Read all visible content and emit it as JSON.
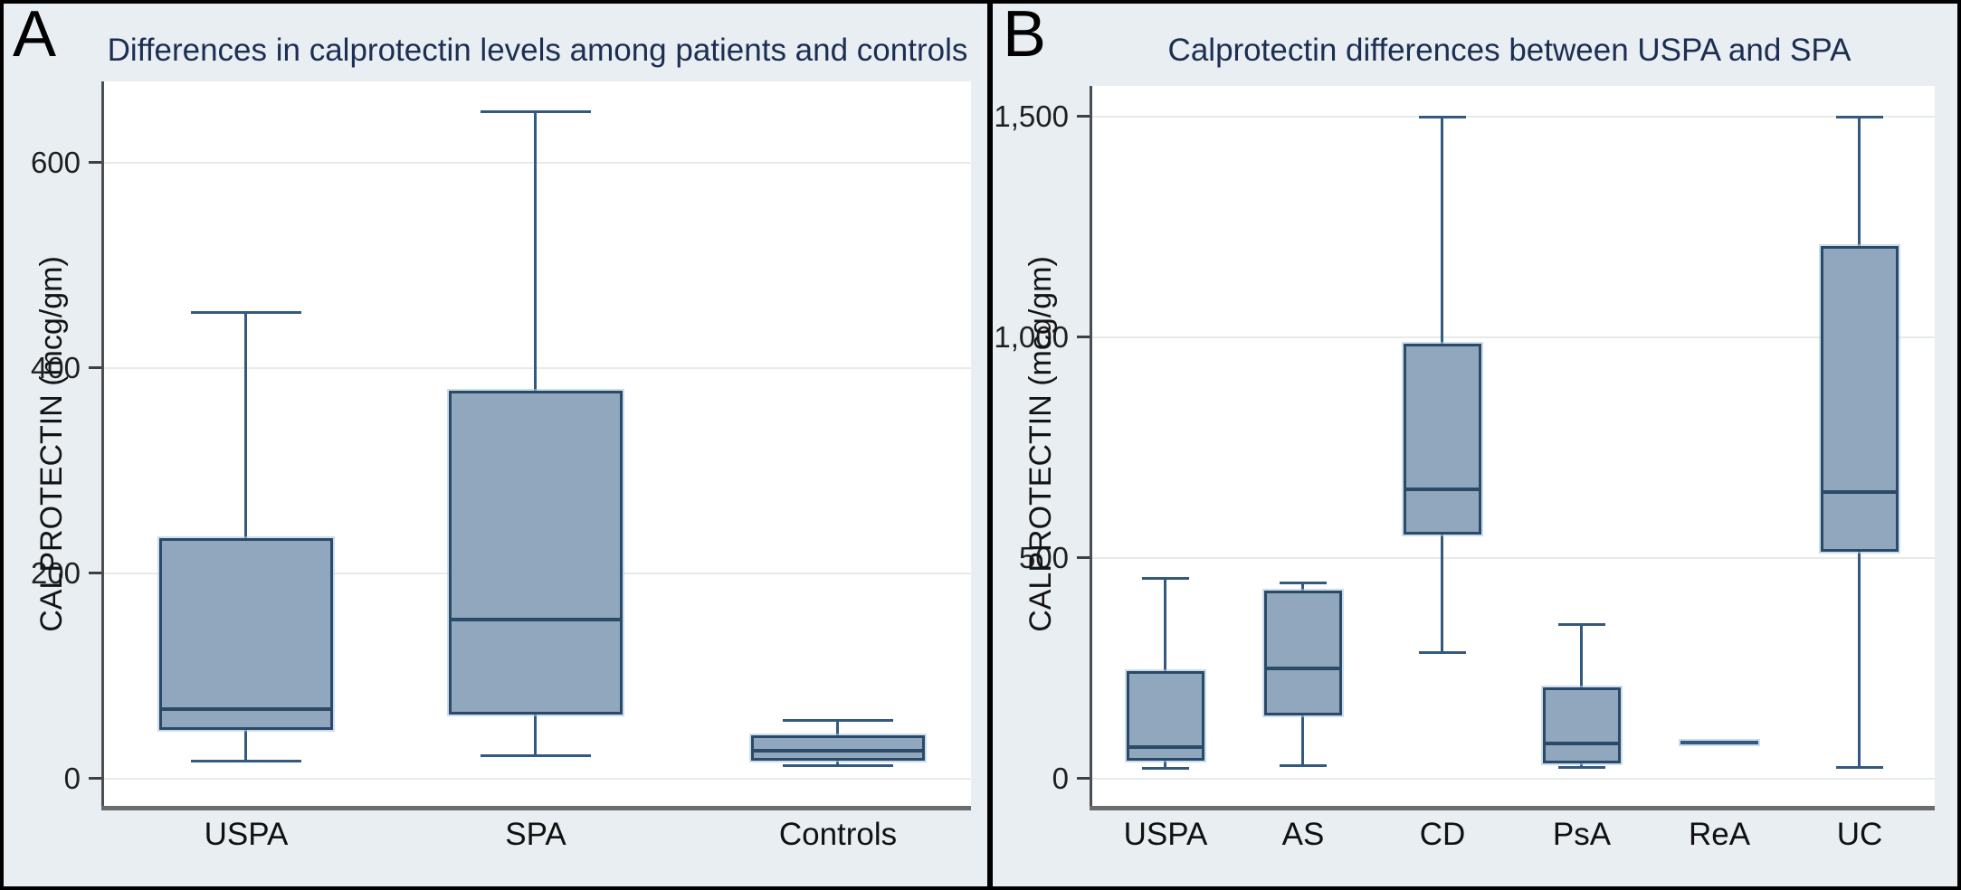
{
  "colors": {
    "panel_bg": "#e8eef2",
    "plot_bg": "#ffffff",
    "gridline": "#e6ebea",
    "axis_y": "#4b4f53",
    "axis_x": "#6b6b6b",
    "tick_mark": "#3f3f3f",
    "tick_label": "#1f1f1f",
    "category_label": "#111111",
    "box_fill": "#90a7bd",
    "box_border": "#2b4a68",
    "whisker": "#34597e",
    "median": "#2b4a68",
    "halo": "rgba(168,199,226,0.6)",
    "title": "#1c2e52",
    "border": "#000000"
  },
  "chart_data": [
    {
      "type": "box",
      "panel_letter": "A",
      "title": "Differences in calprotectin levels among patients and controls",
      "ylabel": "CALPROTECTIN (mcg/gm)",
      "xlabel": "",
      "ylim": [
        0,
        680
      ],
      "grid": "horizontal",
      "legend": "none",
      "ytick_values": [
        0,
        200,
        400,
        600
      ],
      "ytick_labels": [
        "0",
        "200",
        "400",
        "600"
      ],
      "categories": [
        "USPA",
        "SPA",
        "Controls"
      ],
      "series": [
        {
          "category": "USPA",
          "min": 17,
          "q1": 50,
          "median": 68,
          "q3": 232,
          "max": 455
        },
        {
          "category": "SPA",
          "min": 22,
          "q1": 65,
          "median": 155,
          "q3": 375,
          "max": 650
        },
        {
          "category": "Controls",
          "min": 12,
          "q1": 20,
          "median": 27,
          "q3": 40,
          "max": 57
        }
      ]
    },
    {
      "type": "box",
      "panel_letter": "B",
      "title": "Calprotectin differences between USPA and SPA",
      "ylabel": "CALPROTECTIN (mcg/gm)",
      "xlabel": "",
      "ylim": [
        0,
        1570
      ],
      "grid": "horizontal",
      "legend": "none",
      "ytick_values": [
        0,
        500,
        1000,
        1500
      ],
      "ytick_labels": [
        "0",
        "500",
        "1,000",
        "1,500"
      ],
      "categories": [
        "USPA",
        "AS",
        "CD",
        "PsA",
        "ReA",
        "UC"
      ],
      "series": [
        {
          "category": "USPA",
          "min": 22,
          "q1": 48,
          "median": 72,
          "q3": 238,
          "max": 455
        },
        {
          "category": "AS",
          "min": 28,
          "q1": 150,
          "median": 250,
          "q3": 420,
          "max": 445
        },
        {
          "category": "CD",
          "min": 285,
          "q1": 560,
          "median": 655,
          "q3": 980,
          "max": 1500
        },
        {
          "category": "PsA",
          "min": 25,
          "q1": 40,
          "median": 80,
          "q3": 200,
          "max": 350
        },
        {
          "category": "ReA",
          "min": 82,
          "q1": 82,
          "median": 82,
          "q3": 82,
          "max": 82
        },
        {
          "category": "UC",
          "min": 25,
          "q1": 520,
          "median": 650,
          "q3": 1200,
          "max": 1500
        }
      ]
    }
  ]
}
